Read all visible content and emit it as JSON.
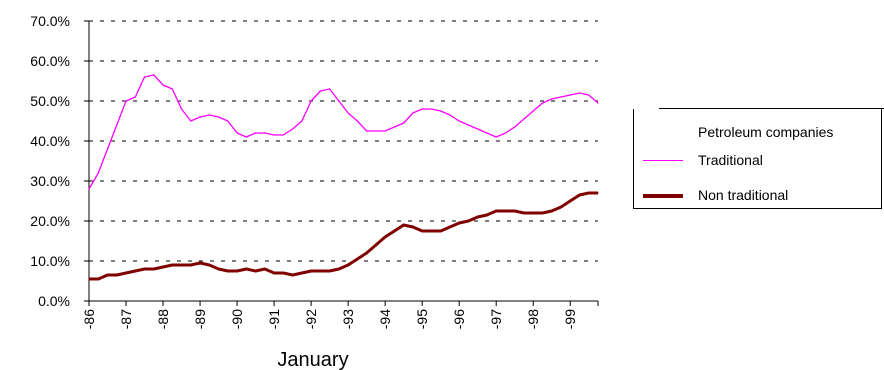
{
  "chart_data": {
    "type": "line",
    "xlabel": "January",
    "ylabel": "",
    "ylim": [
      0,
      70
    ],
    "y_ticks": [
      "0.0%",
      "10.0%",
      "20.0%",
      "30.0%",
      "40.0%",
      "50.0%",
      "60.0%",
      "70.0%"
    ],
    "x_ticks": [
      "-86",
      "-87",
      "-88",
      "-89",
      "-90",
      "-91",
      "-92",
      "-93",
      "-94",
      "-95",
      "-96",
      "-97",
      "-98",
      "-99"
    ],
    "xlim": [
      1986,
      1999.75
    ],
    "grid": "horizontal dashed",
    "legend": {
      "title": "Petroleum companies",
      "placement": "right"
    },
    "series": [
      {
        "name": "Traditional",
        "color": "#ff00ff",
        "x": [
          1986.0,
          1986.25,
          1986.5,
          1986.75,
          1987.0,
          1987.25,
          1987.5,
          1987.75,
          1988.0,
          1988.25,
          1988.5,
          1988.75,
          1989.0,
          1989.25,
          1989.5,
          1989.75,
          1990.0,
          1990.25,
          1990.5,
          1990.75,
          1991.0,
          1991.25,
          1991.5,
          1991.75,
          1992.0,
          1992.25,
          1992.5,
          1992.75,
          1993.0,
          1993.25,
          1993.5,
          1993.75,
          1994.0,
          1994.25,
          1994.5,
          1994.75,
          1995.0,
          1995.25,
          1995.5,
          1995.75,
          1996.0,
          1996.25,
          1996.5,
          1996.75,
          1997.0,
          1997.25,
          1997.5,
          1997.75,
          1998.0,
          1998.25,
          1998.5,
          1998.75,
          1999.0,
          1999.25,
          1999.5,
          1999.75
        ],
        "values": [
          28,
          32,
          38,
          44,
          50,
          51,
          56,
          56.5,
          54,
          53,
          48,
          45,
          46,
          46.5,
          46,
          45,
          42,
          41,
          42,
          42,
          41.5,
          41.5,
          43,
          45,
          50,
          52.5,
          53,
          50,
          47,
          45,
          42.5,
          42.5,
          42.5,
          43.5,
          44.5,
          47,
          48,
          48,
          47.5,
          46.5,
          45,
          44,
          43,
          42,
          41,
          42,
          43.5,
          45.5,
          47.5,
          49.5,
          50.5,
          51,
          51.5,
          52,
          51.5,
          49.5
        ]
      },
      {
        "name": "Non traditional",
        "color": "#800000",
        "x": [
          1986.0,
          1986.25,
          1986.5,
          1986.75,
          1987.0,
          1987.25,
          1987.5,
          1987.75,
          1988.0,
          1988.25,
          1988.5,
          1988.75,
          1989.0,
          1989.25,
          1989.5,
          1989.75,
          1990.0,
          1990.25,
          1990.5,
          1990.75,
          1991.0,
          1991.25,
          1991.5,
          1991.75,
          1992.0,
          1992.25,
          1992.5,
          1992.75,
          1993.0,
          1993.25,
          1993.5,
          1993.75,
          1994.0,
          1994.25,
          1994.5,
          1994.75,
          1995.0,
          1995.25,
          1995.5,
          1995.75,
          1996.0,
          1996.25,
          1996.5,
          1996.75,
          1997.0,
          1997.25,
          1997.5,
          1997.75,
          1998.0,
          1998.25,
          1998.5,
          1998.75,
          1999.0,
          1999.25,
          1999.5,
          1999.75
        ],
        "values": [
          5.5,
          5.5,
          6.5,
          6.5,
          7,
          7.5,
          8,
          8,
          8.5,
          9,
          9,
          9,
          9.5,
          9,
          8,
          7.5,
          7.5,
          8,
          7.5,
          8,
          7,
          7,
          6.5,
          7,
          7.5,
          7.5,
          7.5,
          8,
          9,
          10.5,
          12,
          14,
          16,
          17.5,
          19,
          18.5,
          17.5,
          17.5,
          17.5,
          18.5,
          19.5,
          20,
          21,
          21.5,
          22.5,
          22.5,
          22.5,
          22,
          22,
          22,
          22.5,
          23.5,
          25,
          26.5,
          27,
          27
        ]
      }
    ]
  }
}
